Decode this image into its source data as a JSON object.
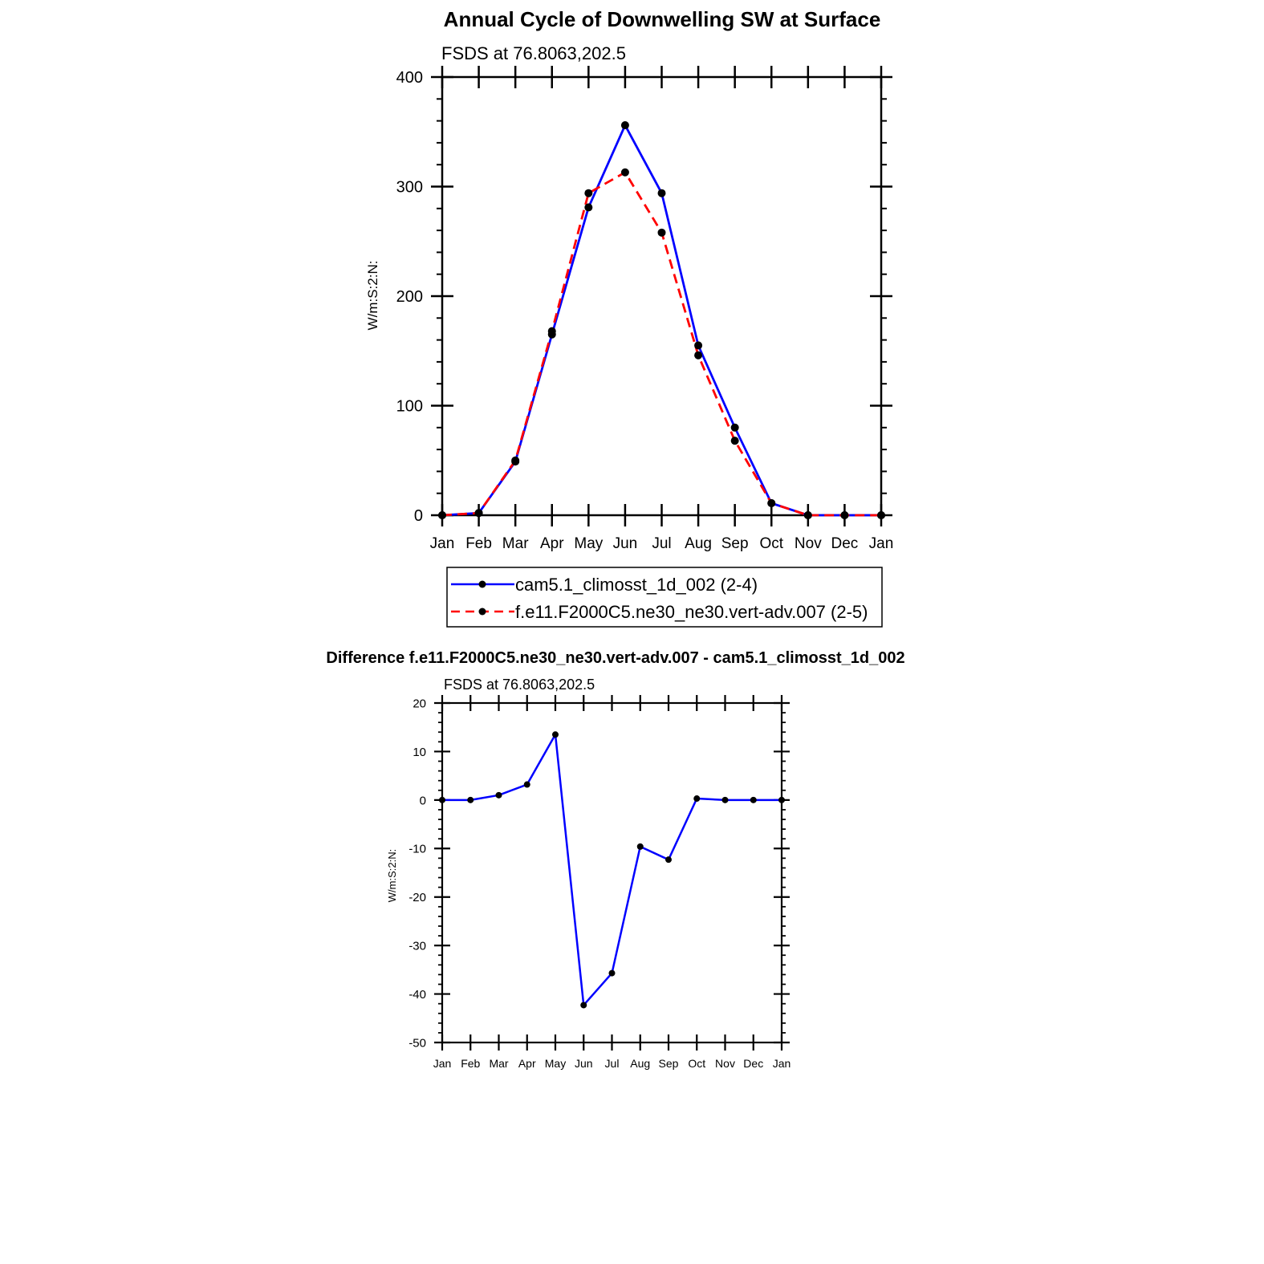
{
  "chart_data": [
    {
      "type": "line",
      "title": "Annual Cycle of Downwelling SW at Surface",
      "subtitle": "FSDS at 76.8063,202.5",
      "xlabel": "",
      "ylabel": "W/m:S:2:N:",
      "categories": [
        "Jan",
        "Feb",
        "Mar",
        "Apr",
        "May",
        "Jun",
        "Jul",
        "Aug",
        "Sep",
        "Oct",
        "Nov",
        "Dec",
        "Jan"
      ],
      "ylim": [
        0,
        400
      ],
      "yticks": [
        0,
        100,
        200,
        300,
        400
      ],
      "grid": false,
      "legend_position": "bottom",
      "series": [
        {
          "name": "cam5.1_climosst_1d_002 (2-4)",
          "color": "#0000ff",
          "dash": "solid",
          "values": [
            0,
            2,
            49,
            165,
            281,
            356,
            294,
            155,
            80,
            11,
            0,
            0,
            0
          ]
        },
        {
          "name": "f.e11.F2000C5.ne30_ne30.vert-adv.007 (2-5)",
          "color": "#ff0000",
          "dash": "dashed",
          "values": [
            0,
            2,
            50,
            168,
            294,
            313,
            258,
            146,
            68,
            11,
            0,
            0,
            0
          ]
        }
      ]
    },
    {
      "type": "line",
      "title": "Difference f.e11.F2000C5.ne30_ne30.vert-adv.007 - cam5.1_climosst_1d_002",
      "subtitle": "FSDS at 76.8063,202.5",
      "xlabel": "",
      "ylabel": "W/m:S:2:N:",
      "categories": [
        "Jan",
        "Feb",
        "Mar",
        "Apr",
        "May",
        "Jun",
        "Jul",
        "Aug",
        "Sep",
        "Oct",
        "Nov",
        "Dec",
        "Jan"
      ],
      "ylim": [
        -50,
        20
      ],
      "yticks": [
        -50,
        -40,
        -30,
        -20,
        -10,
        0,
        10,
        20
      ],
      "grid": false,
      "series": [
        {
          "color": "#0000ff",
          "dash": "solid",
          "values": [
            0,
            0,
            1,
            3.2,
            13.5,
            -42.3,
            -35.7,
            -9.6,
            -12.3,
            0.3,
            0,
            0,
            0
          ]
        }
      ]
    }
  ]
}
